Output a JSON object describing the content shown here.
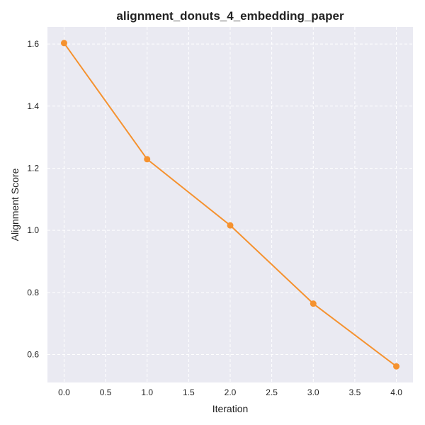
{
  "chart_data": {
    "type": "line",
    "title": "alignment_donuts_4_embedding_paper",
    "xlabel": "Iteration",
    "ylabel": "Alignment Score",
    "x": [
      0,
      1,
      2,
      3,
      4
    ],
    "series": [
      {
        "values": [
          1.603,
          1.229,
          1.016,
          0.764,
          0.562
        ],
        "color": "#f5922f"
      }
    ],
    "xlim": [
      -0.2,
      4.2
    ],
    "ylim": [
      0.51,
      1.655
    ],
    "xticks": [
      0.0,
      0.5,
      1.0,
      1.5,
      2.0,
      2.5,
      3.0,
      3.5,
      4.0
    ],
    "xtick_labels": [
      "0.0",
      "0.5",
      "1.0",
      "1.5",
      "2.0",
      "2.5",
      "3.0",
      "3.5",
      "4.0"
    ],
    "yticks": [
      0.6,
      0.8,
      1.0,
      1.2,
      1.4,
      1.6
    ],
    "ytick_labels": [
      "0.6",
      "0.8",
      "1.0",
      "1.2",
      "1.4",
      "1.6"
    ],
    "grid": true,
    "grid_style": "dashed",
    "plot_background": "#eaeaf2",
    "legend": "none"
  }
}
